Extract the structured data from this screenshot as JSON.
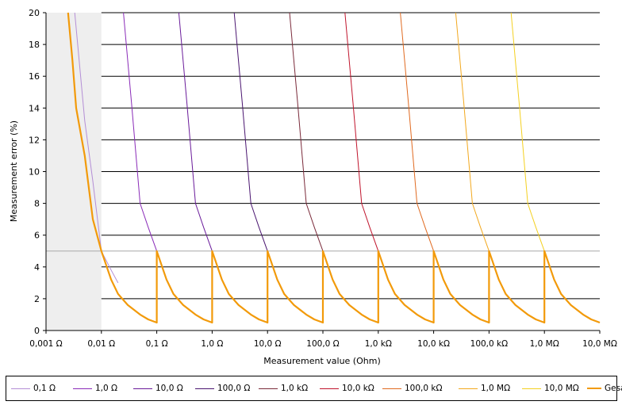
{
  "chart_data": {
    "type": "line",
    "title": "",
    "xlabel": "Measurement value (Ohm)",
    "ylabel": "Measurement error (%)",
    "x_scale": "log",
    "xlim": [
      0.001,
      10000000
    ],
    "ylim": [
      0,
      20
    ],
    "y_ticks": [
      "0",
      "2",
      "4",
      "6",
      "8",
      "10",
      "12",
      "14",
      "16",
      "18",
      "20"
    ],
    "x_ticks": [
      {
        "value": 0.001,
        "label": "0,001 Ω"
      },
      {
        "value": 0.01,
        "label": "0,01 Ω"
      },
      {
        "value": 0.1,
        "label": "0,1 Ω"
      },
      {
        "value": 1,
        "label": "1,0 Ω"
      },
      {
        "value": 10,
        "label": "10,0 Ω"
      },
      {
        "value": 100,
        "label": "100,0 Ω"
      },
      {
        "value": 1000,
        "label": "1,0 kΩ"
      },
      {
        "value": 10000,
        "label": "10,0 kΩ"
      },
      {
        "value": 100000,
        "label": "100,0 kΩ"
      },
      {
        "value": 1000000,
        "label": "1,0 MΩ"
      },
      {
        "value": 10000000,
        "label": "10,0 MΩ"
      }
    ],
    "grid": true,
    "reference_line": 5,
    "shaded_region": [
      0.001,
      0.01
    ],
    "legend_position": "bottom",
    "series": [
      {
        "name": "0,1 Ω",
        "color": "#B48ED6",
        "x": [
          0.0033,
          0.005,
          0.007,
          0.01,
          0.015,
          0.02
        ],
        "y": [
          20,
          13.2,
          9.4,
          5.0,
          3.8,
          3.0
        ]
      },
      {
        "name": "1,0 Ω",
        "color": "#8A2BB8",
        "x": [
          0.025,
          0.035,
          0.05,
          0.07,
          0.1
        ],
        "y": [
          20,
          14.3,
          8.0,
          6.5,
          5.0
        ]
      },
      {
        "name": "10,0 Ω",
        "color": "#6A1B9A",
        "x": [
          0.25,
          0.35,
          0.5,
          0.7,
          1
        ],
        "y": [
          20,
          14.3,
          8.0,
          6.5,
          5.0
        ]
      },
      {
        "name": "100,0 Ω",
        "color": "#4A1570",
        "x": [
          2.5,
          3.5,
          5,
          7,
          10
        ],
        "y": [
          20,
          14.3,
          8.0,
          6.5,
          5.0
        ]
      },
      {
        "name": "1,0 kΩ",
        "color": "#7A2A3A",
        "x": [
          25,
          35,
          50,
          70,
          100
        ],
        "y": [
          20,
          14.3,
          8.0,
          6.5,
          5.0
        ]
      },
      {
        "name": "10,0 kΩ",
        "color": "#C0142C",
        "x": [
          250,
          350,
          500,
          700,
          1000
        ],
        "y": [
          20,
          14.3,
          8.0,
          6.5,
          5.0
        ]
      },
      {
        "name": "100,0 kΩ",
        "color": "#E06A20",
        "x": [
          2500,
          3500,
          5000,
          7000,
          10000
        ],
        "y": [
          20,
          14.3,
          8.0,
          6.5,
          5.0
        ]
      },
      {
        "name": "1,0 MΩ",
        "color": "#F2A81E",
        "x": [
          25000,
          35000,
          50000,
          70000,
          100000
        ],
        "y": [
          20,
          14.3,
          8.0,
          6.5,
          5.0
        ]
      },
      {
        "name": "10,0 MΩ",
        "color": "#F4D020",
        "x": [
          250000,
          350000,
          500000,
          700000,
          1000000
        ],
        "y": [
          20,
          14.3,
          8.0,
          6.5,
          5.0
        ]
      },
      {
        "name": "Gesamt",
        "color": "#F29A0A",
        "bold": true,
        "x": [
          0.0025,
          0.003,
          0.0035,
          0.005,
          0.007,
          0.01,
          0.015,
          0.02,
          0.03,
          0.05,
          0.07,
          0.1,
          0.1,
          0.15,
          0.2,
          0.3,
          0.5,
          0.7,
          1,
          1,
          1.5,
          2,
          3,
          5,
          7,
          10,
          10,
          15,
          20,
          30,
          50,
          70,
          100,
          100,
          150,
          200,
          300,
          500,
          700,
          1000,
          1000,
          1500,
          2000,
          3000,
          5000,
          7000,
          10000,
          10000,
          15000,
          20000,
          30000,
          50000,
          70000,
          100000,
          100000,
          150000,
          200000,
          300000,
          500000,
          700000,
          1000000,
          1000000,
          1500000,
          2000000,
          3000000,
          5000000,
          7000000,
          10000000
        ],
        "y": [
          20,
          17.0,
          14.0,
          11.0,
          7.0,
          5.0,
          3.2,
          2.3,
          1.6,
          1.0,
          0.7,
          0.5,
          5.0,
          3.2,
          2.3,
          1.6,
          1.0,
          0.7,
          0.5,
          5.0,
          3.2,
          2.3,
          1.6,
          1.0,
          0.7,
          0.5,
          5.0,
          3.2,
          2.3,
          1.6,
          1.0,
          0.7,
          0.5,
          5.0,
          3.2,
          2.3,
          1.6,
          1.0,
          0.7,
          0.5,
          5.0,
          3.2,
          2.3,
          1.6,
          1.0,
          0.7,
          0.5,
          5.0,
          3.2,
          2.3,
          1.6,
          1.0,
          0.7,
          0.5,
          5.0,
          3.2,
          2.3,
          1.6,
          1.0,
          0.7,
          0.5,
          5.0,
          3.2,
          2.3,
          1.6,
          1.0,
          0.7,
          0.5
        ]
      }
    ]
  }
}
